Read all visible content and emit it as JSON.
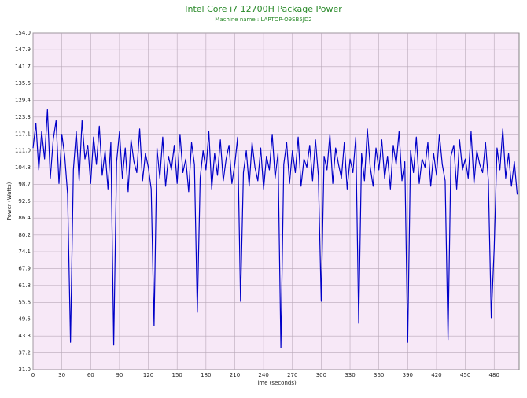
{
  "chart_data": {
    "type": "line",
    "title": "Intel Core i7 12700H Package Power",
    "subtitle": "Machine name : LAPTOP-O9SB5JD2",
    "x_label": "Time (seconds)",
    "y_label": "Power (Watts)",
    "color": "#0000c8",
    "grid": true,
    "xlim": [
      0,
      506
    ],
    "xticks": [
      0,
      30,
      60,
      90,
      120,
      150,
      180,
      210,
      240,
      270,
      300,
      330,
      360,
      390,
      420,
      450,
      480
    ],
    "ylim": [
      31,
      154
    ],
    "yticks": [
      {
        "value": 31,
        "label": "31.0"
      },
      37.2,
      43.3,
      49.5,
      55.6,
      61.8,
      67.9,
      74.1,
      80.2,
      86.4,
      92.5,
      98.7,
      104.8,
      {
        "value": 111,
        "label": "111.0"
      },
      117.1,
      123.3,
      129.4,
      135.6,
      141.7,
      147.9,
      {
        "value": 154,
        "label": "154.0"
      }
    ],
    "x": [
      0,
      3,
      6,
      9,
      12,
      15,
      18,
      21,
      24,
      27,
      30,
      33,
      36,
      39,
      42,
      45,
      48,
      51,
      54,
      57,
      60,
      63,
      66,
      69,
      72,
      75,
      78,
      81,
      84,
      87,
      90,
      93,
      96,
      99,
      102,
      105,
      108,
      111,
      114,
      117,
      120,
      123,
      126,
      129,
      132,
      135,
      138,
      141,
      144,
      147,
      150,
      153,
      156,
      159,
      162,
      165,
      168,
      171,
      174,
      177,
      180,
      183,
      186,
      189,
      192,
      195,
      198,
      201,
      204,
      207,
      210,
      213,
      216,
      219,
      222,
      225,
      228,
      231,
      234,
      237,
      240,
      243,
      246,
      249,
      252,
      255,
      258,
      261,
      264,
      267,
      270,
      273,
      276,
      279,
      282,
      285,
      288,
      291,
      294,
      297,
      300,
      303,
      306,
      309,
      312,
      315,
      318,
      321,
      324,
      327,
      330,
      333,
      336,
      339,
      342,
      345,
      348,
      351,
      354,
      357,
      360,
      363,
      366,
      369,
      372,
      375,
      378,
      381,
      384,
      387,
      390,
      393,
      396,
      399,
      402,
      405,
      408,
      411,
      414,
      417,
      420,
      423,
      426,
      429,
      432,
      435,
      438,
      441,
      444,
      447,
      450,
      453,
      456,
      459,
      462,
      465,
      468,
      471,
      474,
      477,
      480,
      483,
      486,
      489,
      492,
      495,
      498,
      501,
      504
    ],
    "values": [
      112,
      121,
      104,
      118,
      108,
      126,
      101,
      115,
      122,
      99,
      117,
      109,
      95,
      41,
      104,
      118,
      100,
      122,
      108,
      113,
      99,
      116,
      106,
      120,
      102,
      111,
      97,
      114,
      40,
      107,
      118,
      101,
      112,
      96,
      115,
      107,
      103,
      119,
      100,
      110,
      105,
      97,
      47,
      112,
      101,
      116,
      98,
      109,
      104,
      113,
      99,
      117,
      103,
      108,
      96,
      114,
      106,
      52,
      101,
      111,
      104,
      118,
      97,
      110,
      102,
      115,
      100,
      108,
      113,
      99,
      106,
      116,
      56,
      103,
      111,
      98,
      114,
      105,
      100,
      112,
      97,
      109,
      104,
      117,
      101,
      110,
      39,
      106,
      114,
      99,
      111,
      103,
      116,
      98,
      108,
      105,
      113,
      100,
      115,
      102,
      56,
      109,
      104,
      117,
      99,
      112,
      106,
      101,
      114,
      97,
      108,
      103,
      116,
      48,
      110,
      100,
      119,
      105,
      98,
      112,
      104,
      115,
      101,
      109,
      97,
      113,
      106,
      118,
      100,
      107,
      41,
      111,
      103,
      116,
      99,
      108,
      105,
      114,
      98,
      110,
      102,
      117,
      106,
      100,
      42,
      109,
      113,
      97,
      115,
      104,
      108,
      101,
      118,
      99,
      111,
      106,
      103,
      114,
      100,
      50,
      75,
      112,
      104,
      119,
      101,
      110,
      98,
      107,
      95
    ]
  }
}
